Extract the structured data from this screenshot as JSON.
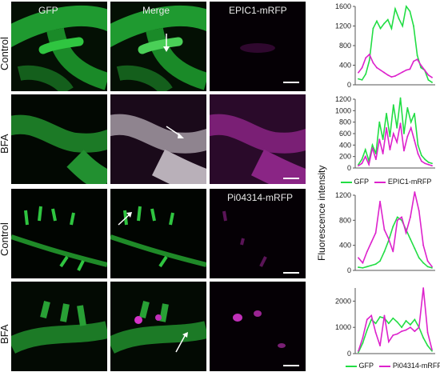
{
  "figure": {
    "rows": [
      {
        "label": "Control"
      },
      {
        "label": "BFA"
      },
      {
        "label": "Control"
      },
      {
        "label": "BFA"
      }
    ],
    "column_labels": {
      "gfp": "GFP",
      "merge": "Merge",
      "epic1": "EPIC1-mRFP",
      "pi04314": "Pi04314-mRFP"
    },
    "colors": {
      "gfp": "#22dd44",
      "rfp": "#dd22cc"
    },
    "y_axis_label": "Fluorescence  intensity"
  },
  "chart_data": [
    {
      "type": "line",
      "ylim": [
        0,
        1600
      ],
      "y_ticks": [
        "0",
        "400",
        "800",
        "1200",
        "1600"
      ],
      "series": [
        {
          "values": [
            120,
            100,
            220,
            500,
            1150,
            1300,
            1150,
            1250,
            1330,
            1150,
            1550,
            1350,
            1200,
            1600,
            1500,
            1200,
            600,
            350,
            300,
            100,
            50
          ]
        },
        {
          "values": [
            250,
            350,
            550,
            620,
            450,
            350,
            300,
            250,
            200,
            160,
            180,
            220,
            260,
            300,
            320,
            480,
            520,
            400,
            300,
            200,
            150
          ]
        }
      ]
    },
    {
      "type": "line",
      "ylim": [
        0,
        1200
      ],
      "y_ticks": [
        "0",
        "200",
        "400",
        "600",
        "800",
        "1000",
        "1200"
      ],
      "legend": [
        "GFP",
        "EPIC1-mRFP"
      ],
      "series": [
        {
          "name": "GFP",
          "values": [
            60,
            150,
            320,
            120,
            400,
            250,
            800,
            500,
            950,
            550,
            1100,
            700,
            1220,
            600,
            1050,
            800,
            950,
            400,
            220,
            150,
            100,
            80
          ]
        },
        {
          "name": "EPIC1-mRFP",
          "values": [
            40,
            80,
            200,
            60,
            350,
            150,
            500,
            250,
            700,
            320,
            600,
            450,
            780,
            300,
            550,
            700,
            480,
            250,
            120,
            80,
            60,
            40
          ]
        }
      ]
    },
    {
      "type": "line",
      "ylim": [
        0,
        1200
      ],
      "y_ticks": [
        "0",
        "400",
        "800",
        "1200"
      ],
      "series": [
        {
          "values": [
            50,
            40,
            60,
            80,
            100,
            150,
            300,
            480,
            700,
            850,
            800,
            650,
            500,
            350,
            200,
            120,
            60,
            40
          ]
        },
        {
          "values": [
            200,
            120,
            300,
            450,
            600,
            1100,
            650,
            500,
            300,
            800,
            850,
            600,
            850,
            1250,
            950,
            400,
            150,
            60
          ]
        }
      ]
    },
    {
      "type": "line",
      "ylim": [
        0,
        2500
      ],
      "y_ticks": [
        "0",
        "1000",
        "2000"
      ],
      "legend": [
        "GFP",
        "Pi04314-mRFP"
      ],
      "series": [
        {
          "name": "GFP",
          "values": [
            50,
            400,
            900,
            1300,
            1150,
            1400,
            1350,
            1150,
            1350,
            1200,
            1000,
            1250,
            1100,
            1300,
            1000,
            600,
            300,
            100
          ]
        },
        {
          "name": "Pi04314-mRFP",
          "values": [
            100,
            600,
            1300,
            1450,
            800,
            300,
            1450,
            450,
            700,
            750,
            850,
            900,
            1000,
            850,
            1000,
            2500,
            800,
            150
          ]
        }
      ]
    }
  ]
}
